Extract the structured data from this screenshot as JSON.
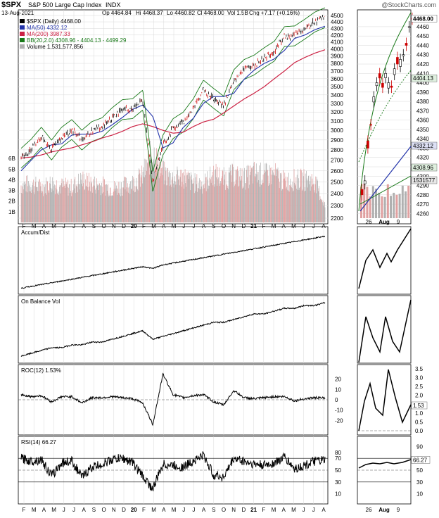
{
  "header": {
    "symbol": "$SPX",
    "name": "S&P 500 Large Cap Index",
    "exchange": "INDX",
    "watermark": "@StockCharts.com",
    "date": "13-Aug-2021",
    "ohlc": [
      "Op 4464.84",
      "Hi 4468.37",
      "Lo 4460.82",
      "Cl 4468.00",
      "Vol 1.5B",
      "Chg +7.17 (+0.16%)"
    ]
  },
  "legend": {
    "price": "$SPX (Daily) 4468.00",
    "ma50": "MA(50) 4332.12",
    "ma200": "MA(200) 3987.33",
    "bb": "BB(20,2.0) 4308.96 - 4404.13 - 4499.29",
    "volume": "Volume 1,531,577,856"
  },
  "colors": {
    "price_up": "#000000",
    "price_down": "#cc0000",
    "ma50": "#2233aa",
    "ma200": "#cc2244",
    "bb": "#1a7a1a",
    "volume": "#b0b0b0",
    "volume_up": "#e0a0a0",
    "grid": "#d8d8d8",
    "zero_line": "#555555"
  },
  "panels": {
    "adl_label": "Accum/Dist",
    "obv_label": "On Balance Vol",
    "roc_label": "ROC(12) 1.53%",
    "rsi_label": "RSI(14) 66.27"
  },
  "main_axes": {
    "price_ticks": [
      "4500",
      "4400",
      "4300",
      "4200",
      "4100",
      "4000",
      "3900",
      "3800",
      "3700",
      "3600",
      "3500",
      "3400",
      "3300",
      "3200",
      "3100",
      "3000",
      "2900",
      "2800",
      "2700",
      "2600",
      "2500",
      "2400",
      "2300",
      "2200"
    ],
    "volume_ticks": [
      "6B",
      "5B",
      "4B",
      "3B",
      "2B",
      "1B"
    ],
    "x_ticks": [
      "F",
      "M",
      "A",
      "M",
      "J",
      "J",
      "A",
      "S",
      "O",
      "N",
      "D",
      "20",
      "F",
      "M",
      "A",
      "M",
      "J",
      "J",
      "A",
      "S",
      "O",
      "N",
      "D",
      "21",
      "F",
      "M",
      "A",
      "M",
      "J",
      "J",
      "A"
    ]
  },
  "zoom_axes": {
    "price_ticks": [
      "4460",
      "4450",
      "4440",
      "4430",
      "4420",
      "4410",
      "4400",
      "4390",
      "4380",
      "4370",
      "4360",
      "4350",
      "4340",
      "4330",
      "4320",
      "4310",
      "4300",
      "4290",
      "4280",
      "4270",
      "4260"
    ],
    "x_ticks": [
      "26",
      "Aug",
      "9"
    ],
    "tags": [
      "4468.00",
      "4404.13",
      "4332.12",
      "4308.96",
      "1531577"
    ]
  },
  "roc_axes": {
    "left_ticks": [
      "20",
      "10",
      "0",
      "-10",
      "-20"
    ],
    "right_ticks": [
      "3.5",
      "3.0",
      "2.5",
      "2.0",
      "1.5",
      "1.0",
      "0.5",
      "0.0"
    ],
    "tag": "1.53"
  },
  "rsi_axes": {
    "left_ticks": [
      "80",
      "70",
      "50",
      "30",
      "10"
    ],
    "right_ticks": [
      "90",
      "70",
      "50",
      "30",
      "10"
    ],
    "tag": "66.27"
  },
  "chart_data": {
    "type": "line",
    "title": "$SPX S&P 500 Large Cap Index INDX",
    "x_range": [
      "Feb 2019",
      "13-Aug-2021"
    ],
    "ylim": [
      2200,
      4500
    ],
    "scale": "log",
    "series": [
      {
        "name": "$SPX (Daily)",
        "x": [
          "2019-02",
          "2019-03",
          "2019-04",
          "2019-05",
          "2019-06",
          "2019-07",
          "2019-08",
          "2019-09",
          "2019-10",
          "2019-11",
          "2019-12",
          "2020-01",
          "2020-02",
          "2020-03",
          "2020-04",
          "2020-05",
          "2020-06",
          "2020-07",
          "2020-08",
          "2020-09",
          "2020-10",
          "2020-11",
          "2020-12",
          "2021-01",
          "2021-02",
          "2021-03",
          "2021-04",
          "2021-05",
          "2021-06",
          "2021-07",
          "2021-08"
        ],
        "values": [
          2720,
          2810,
          2930,
          2800,
          2930,
          3010,
          2900,
          2990,
          3030,
          3140,
          3230,
          3240,
          3340,
          2500,
          2850,
          3020,
          3090,
          3240,
          3460,
          3360,
          3270,
          3590,
          3720,
          3780,
          3880,
          3970,
          4180,
          4190,
          4290,
          4400,
          4468
        ]
      },
      {
        "name": "MA(50)",
        "values": [
          2600,
          2700,
          2800,
          2850,
          2860,
          2950,
          2960,
          2960,
          2990,
          3060,
          3140,
          3230,
          3280,
          3150,
          2820,
          2870,
          3030,
          3130,
          3300,
          3380,
          3380,
          3420,
          3590,
          3710,
          3800,
          3860,
          3980,
          4150,
          4200,
          4280,
          4332
        ]
      },
      {
        "name": "MA(200)",
        "values": [
          2720,
          2730,
          2750,
          2780,
          2800,
          2820,
          2850,
          2880,
          2920,
          2950,
          2990,
          3040,
          3070,
          3040,
          3000,
          2970,
          2980,
          3040,
          3090,
          3120,
          3190,
          3270,
          3350,
          3420,
          3500,
          3600,
          3700,
          3810,
          3880,
          3940,
          3987
        ]
      },
      {
        "name": "Volume",
        "values": [
          3.4,
          3.5,
          3.2,
          3.6,
          3.3,
          3.2,
          3.9,
          3.5,
          3.4,
          3.1,
          3.3,
          3.6,
          4.2,
          6.5,
          4.5,
          4.0,
          4.2,
          3.6,
          3.5,
          4.4,
          4.0,
          4.3,
          4.0,
          4.5,
          4.3,
          4.4,
          3.7,
          3.9,
          3.9,
          3.7,
          1.5
        ]
      }
    ],
    "indicators": {
      "Accum/Dist": [
        1,
        2,
        3,
        4,
        5,
        6,
        7,
        8,
        9,
        10,
        11,
        12,
        13,
        12,
        14,
        15,
        16,
        17,
        18,
        19,
        20,
        21,
        22,
        23,
        24,
        25,
        26,
        27,
        28,
        29,
        30
      ],
      "On Balance Vol": [
        1,
        2,
        3,
        4,
        4,
        5,
        5,
        6,
        6,
        7,
        8,
        9,
        10,
        7,
        8,
        9,
        10,
        11,
        12,
        13,
        13,
        14,
        15,
        16,
        16,
        17,
        18,
        18,
        19,
        19,
        20
      ],
      "ROC(12)": [
        5,
        3,
        4,
        -2,
        3,
        3,
        -3,
        2,
        2,
        3,
        2,
        1,
        -3,
        -24,
        25,
        5,
        2,
        4,
        5,
        -2,
        -5,
        9,
        2,
        1,
        2,
        3,
        3,
        -1,
        1,
        2,
        1.53
      ],
      "RSI(14)": [
        70,
        65,
        68,
        40,
        62,
        66,
        38,
        55,
        60,
        68,
        70,
        63,
        40,
        18,
        60,
        58,
        55,
        66,
        75,
        42,
        38,
        70,
        65,
        60,
        58,
        62,
        72,
        52,
        58,
        65,
        66.27
      ]
    }
  }
}
